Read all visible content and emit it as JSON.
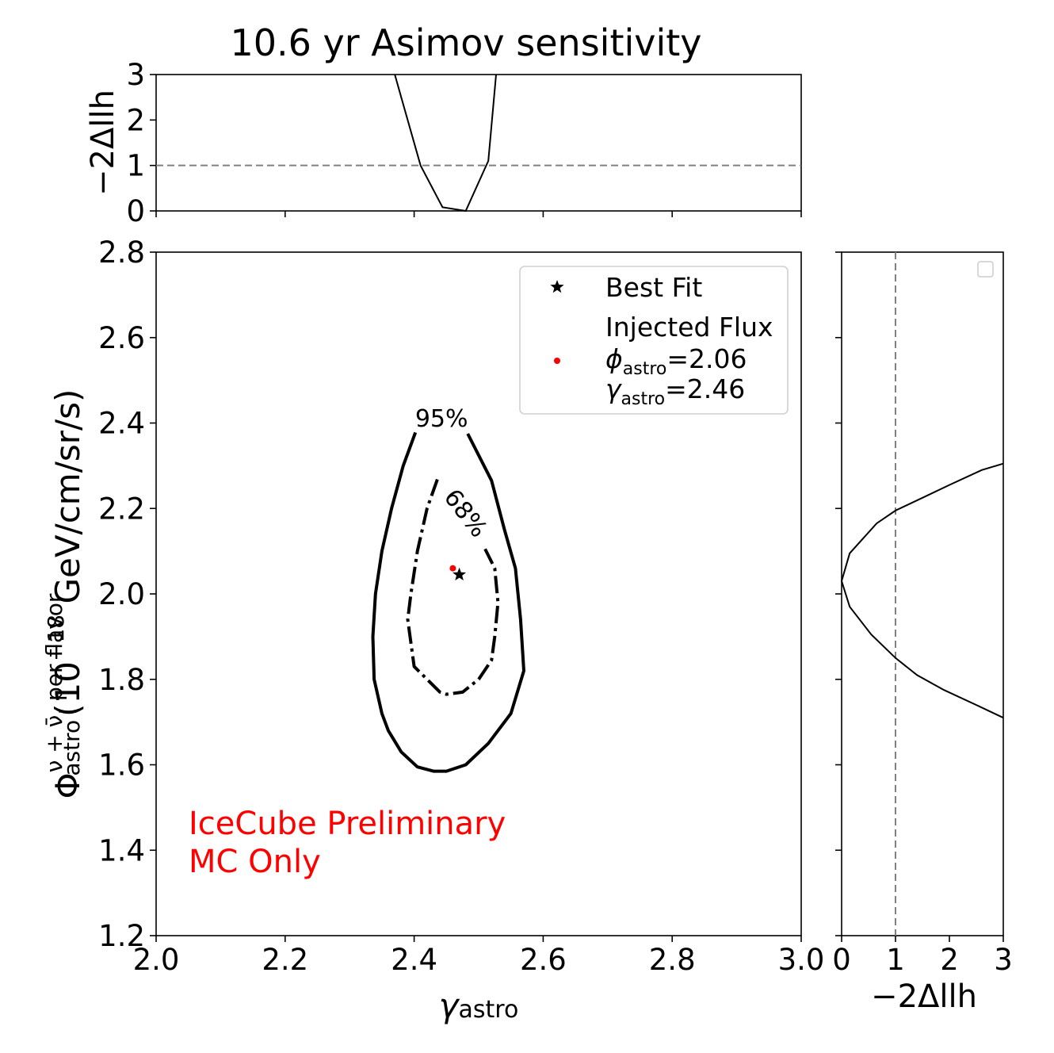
{
  "chart_data": {
    "type": "contour",
    "title": "10.6 yr Asimov sensitivity",
    "xlabel_symbol": "γ",
    "xlabel_sub": "astro",
    "ylabel_symbol": "Φ",
    "ylabel_sup": "ν + ν̄, per flavor",
    "ylabel_sub": "astro",
    "ylabel_unit_prefix": "(10",
    "ylabel_unit_exp": "−18",
    "ylabel_unit_suffix": " GeV/cm/sr/s)",
    "xlim": [
      2.0,
      3.0
    ],
    "ylim": [
      1.2,
      2.8
    ],
    "xticks": [
      "2.0",
      "2.2",
      "2.4",
      "2.6",
      "2.8",
      "3.0"
    ],
    "yticks": [
      "1.2",
      "1.4",
      "1.6",
      "1.8",
      "2.0",
      "2.2",
      "2.4",
      "2.6",
      "2.8"
    ],
    "best_fit": {
      "x": 2.47,
      "y": 2.045
    },
    "injected": {
      "x": 2.46,
      "y": 2.06
    },
    "contour_95": {
      "label": "95%",
      "points": [
        [
          2.402,
          2.378
        ],
        [
          2.383,
          2.3
        ],
        [
          2.365,
          2.2
        ],
        [
          2.35,
          2.1
        ],
        [
          2.34,
          2.0
        ],
        [
          2.336,
          1.9
        ],
        [
          2.338,
          1.8
        ],
        [
          2.35,
          1.72
        ],
        [
          2.36,
          1.68
        ],
        [
          2.37,
          1.655
        ],
        [
          2.38,
          1.63
        ],
        [
          2.405,
          1.595
        ],
        [
          2.43,
          1.585
        ],
        [
          2.45,
          1.585
        ],
        [
          2.48,
          1.6
        ],
        [
          2.515,
          1.65
        ],
        [
          2.55,
          1.72
        ],
        [
          2.57,
          1.82
        ],
        [
          2.565,
          1.94
        ],
        [
          2.557,
          2.06
        ],
        [
          2.54,
          2.15
        ],
        [
          2.52,
          2.265
        ],
        [
          2.483,
          2.375
        ]
      ]
    },
    "contour_68": {
      "label": "68%",
      "points": [
        [
          2.436,
          2.268
        ],
        [
          2.42,
          2.2
        ],
        [
          2.405,
          2.1
        ],
        [
          2.395,
          2.0
        ],
        [
          2.39,
          1.94
        ],
        [
          2.4,
          1.83
        ],
        [
          2.42,
          1.8
        ],
        [
          2.44,
          1.77
        ],
        [
          2.45,
          1.765
        ],
        [
          2.475,
          1.77
        ],
        [
          2.5,
          1.8
        ],
        [
          2.52,
          1.845
        ],
        [
          2.525,
          1.9
        ],
        [
          2.53,
          1.98
        ],
        [
          2.525,
          2.06
        ],
        [
          2.51,
          2.105
        ]
      ]
    },
    "legend": {
      "placement": "top-right",
      "best_fit_label": "Best Fit",
      "injected_title": "Injected Flux",
      "phi_symbol": "ϕ",
      "phi_sub": "astro",
      "phi_value": "=2.06",
      "gamma_symbol": "γ",
      "gamma_sub": "astro",
      "gamma_value": "=2.46"
    },
    "top_profile": {
      "ylabel": "−2Δllh",
      "ylim": [
        0,
        3
      ],
      "yticks": [
        "0",
        "1",
        "2",
        "3"
      ],
      "threshold": 1,
      "points": [
        [
          2.37,
          3.0
        ],
        [
          2.38,
          2.5
        ],
        [
          2.41,
          1.0
        ],
        [
          2.444,
          0.08
        ],
        [
          2.48,
          0.0
        ],
        [
          2.515,
          1.1
        ],
        [
          2.527,
          3.0
        ]
      ]
    },
    "right_profile": {
      "xlabel": "−2Δllh",
      "xlim": [
        0,
        3
      ],
      "xticks": [
        "0",
        "1",
        "2",
        "3"
      ],
      "threshold": 1,
      "points": [
        [
          3.0,
          1.71
        ],
        [
          2.5,
          1.74
        ],
        [
          1.9,
          1.775
        ],
        [
          1.4,
          1.81
        ],
        [
          1.0,
          1.85
        ],
        [
          0.55,
          1.905
        ],
        [
          0.15,
          1.97
        ],
        [
          0.0,
          2.03
        ],
        [
          0.15,
          2.095
        ],
        [
          0.65,
          2.165
        ],
        [
          1.0,
          2.195
        ],
        [
          1.5,
          2.225
        ],
        [
          2.0,
          2.255
        ],
        [
          2.6,
          2.29
        ],
        [
          3.0,
          2.305
        ]
      ]
    },
    "annotation_line1": "IceCube Preliminary",
    "annotation_line2": "MC Only",
    "colors": {
      "contour": "#000000",
      "injected": "#ff0000",
      "annotation": "#ff0000",
      "threshold": "#808080"
    }
  }
}
